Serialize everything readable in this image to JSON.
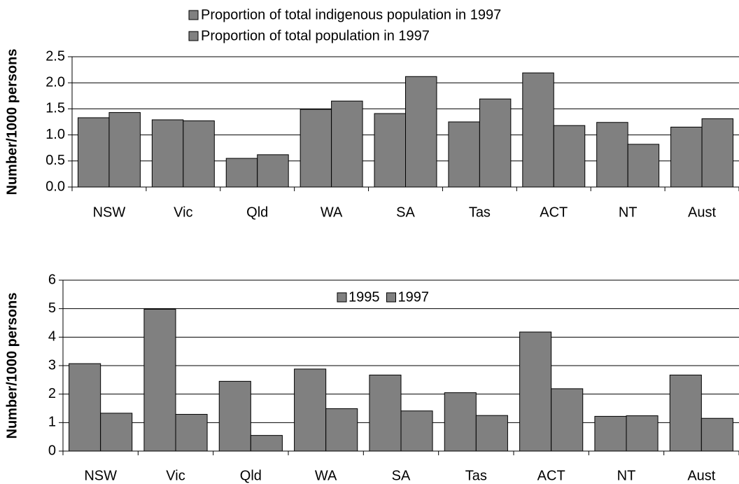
{
  "chart_data": [
    {
      "type": "bar",
      "y_label": "Number/1000 persons",
      "categories": [
        "NSW",
        "Vic",
        "Qld",
        "WA",
        "SA",
        "Tas",
        "ACT",
        "NT",
        "Aust"
      ],
      "series": [
        {
          "name": "Proportion of total indigenous population in 1997",
          "color": "#808080",
          "values": [
            1.33,
            1.29,
            0.55,
            1.49,
            1.41,
            1.25,
            2.19,
            1.24,
            1.15
          ]
        },
        {
          "name": "Proportion of total population in 1997",
          "color": "#808080",
          "values": [
            1.43,
            1.27,
            0.62,
            1.65,
            2.12,
            1.69,
            1.18,
            0.82,
            1.31
          ]
        }
      ],
      "ylim": [
        0,
        2.5
      ],
      "yticks": [
        {
          "value": 0,
          "label": "0.0"
        },
        0.5,
        {
          "value": 1,
          "label": "1.0"
        },
        1.5,
        {
          "value": 2,
          "label": "2.0"
        },
        2.5
      ],
      "grid": true,
      "legend": "top"
    },
    {
      "type": "bar",
      "y_label": "Number/1000 persons",
      "categories": [
        "NSW",
        "Vic",
        "Qld",
        "WA",
        "SA",
        "Tas",
        "ACT",
        "NT",
        "Aust"
      ],
      "series": [
        {
          "name": "1995",
          "color": "#808080",
          "values": [
            3.07,
            4.98,
            2.45,
            2.88,
            2.67,
            2.05,
            4.18,
            1.22,
            2.67
          ]
        },
        {
          "name": "1997",
          "color": "#808080",
          "values": [
            1.33,
            1.29,
            0.55,
            1.49,
            1.41,
            1.25,
            2.19,
            1.24,
            1.15
          ]
        }
      ],
      "ylim": [
        0,
        6
      ],
      "yticks": [
        0,
        1,
        2,
        3,
        4,
        5,
        6
      ],
      "grid": true,
      "legend": "upper center"
    }
  ]
}
